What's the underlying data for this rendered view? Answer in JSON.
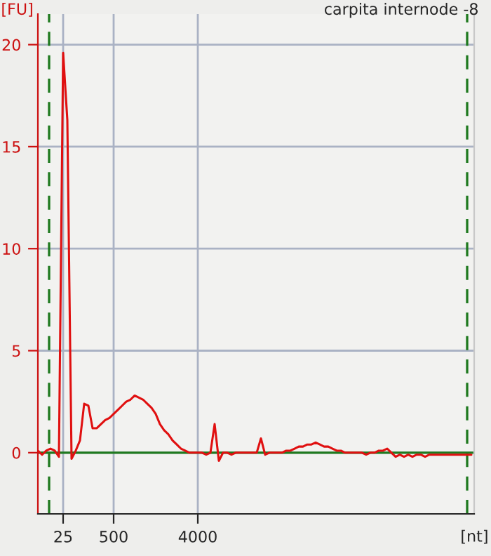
{
  "chart_data": {
    "type": "line",
    "title": "carpita internode -8",
    "ylabel": "[FU]",
    "xlabel": "[nt]",
    "categories": [
      null,
      null,
      null,
      null,
      null,
      null,
      "25",
      null,
      null,
      null,
      null,
      null,
      null,
      null,
      null,
      null,
      null,
      null,
      "500",
      null,
      null,
      null,
      null,
      null,
      null,
      null,
      null,
      null,
      null,
      null,
      null,
      null,
      null,
      null,
      null,
      null,
      null,
      null,
      "4000",
      null,
      null,
      null,
      null,
      null,
      null,
      null,
      null,
      null,
      null,
      null,
      null,
      null,
      null,
      null,
      null,
      null,
      null,
      null,
      null,
      null,
      null,
      null,
      null,
      null,
      null,
      null,
      null,
      null,
      null,
      null,
      null,
      null,
      null,
      null,
      null,
      null,
      null,
      null,
      null,
      null,
      null,
      null,
      null,
      null,
      null,
      null,
      null,
      null,
      null,
      null,
      null,
      null,
      null,
      null,
      null,
      null,
      null,
      null,
      null,
      null,
      null,
      null,
      null,
      null
    ],
    "ylim": [
      -3,
      21.5
    ],
    "yticks": [
      0,
      5,
      10,
      15,
      20
    ],
    "grid": true,
    "marker": "none",
    "line_style": "solid",
    "ref_lines": [
      {
        "axis": "y",
        "value": 0,
        "color": "#207a20",
        "line_style": "solid"
      }
    ],
    "series": [
      {
        "color": "#e01010",
        "values": [
          0.1,
          -0.1,
          0.1,
          0.2,
          0.1,
          -0.2,
          19.6,
          16.3,
          -0.3,
          0.1,
          0.6,
          2.4,
          2.3,
          1.2,
          1.2,
          1.4,
          1.6,
          1.7,
          1.9,
          2.1,
          2.3,
          2.5,
          2.6,
          2.8,
          2.7,
          2.6,
          2.4,
          2.2,
          1.9,
          1.4,
          1.1,
          0.9,
          0.6,
          0.4,
          0.2,
          0.1,
          0.0,
          0.0,
          0.0,
          0.0,
          -0.1,
          0.0,
          1.4,
          -0.4,
          0.0,
          0.0,
          -0.1,
          0.0,
          0.0,
          0.0,
          0.0,
          0.0,
          0.0,
          0.7,
          -0.1,
          0.0,
          0.0,
          0.0,
          0.0,
          0.1,
          0.1,
          0.2,
          0.3,
          0.3,
          0.4,
          0.4,
          0.5,
          0.4,
          0.3,
          0.3,
          0.2,
          0.1,
          0.1,
          0.0,
          0.0,
          0.0,
          0.0,
          0.0,
          -0.1,
          0.0,
          0.0,
          0.1,
          0.1,
          0.2,
          0.0,
          -0.2,
          -0.1,
          -0.2,
          -0.1,
          -0.2,
          -0.1,
          -0.1,
          -0.2,
          -0.1,
          -0.1,
          -0.1,
          -0.1,
          -0.1,
          -0.1,
          -0.1,
          -0.1,
          -0.1,
          -0.1,
          -0.1
        ]
      }
    ]
  }
}
